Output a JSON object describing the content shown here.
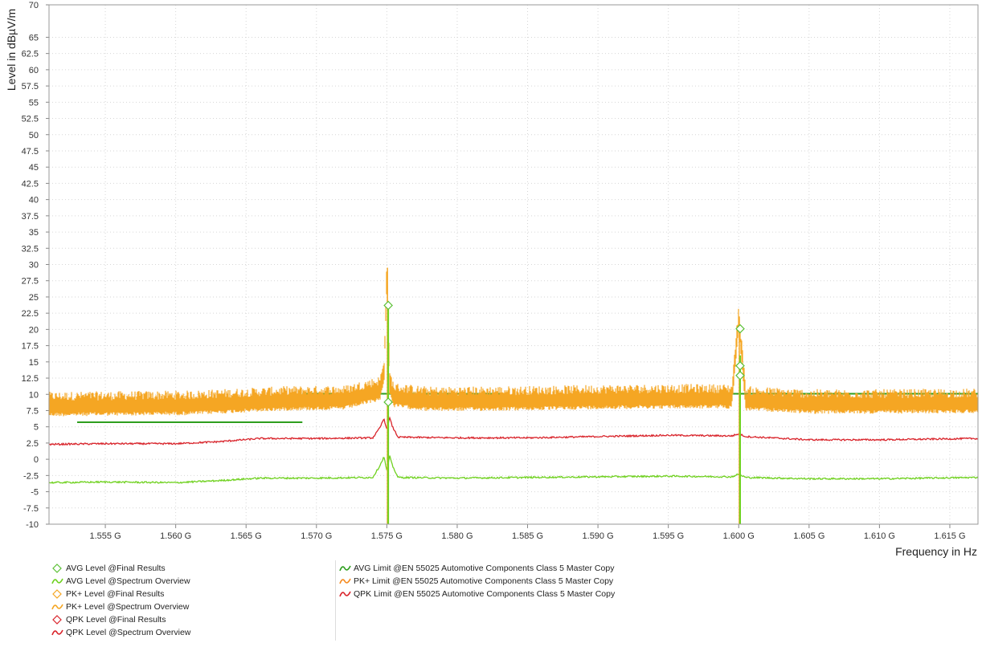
{
  "chart_data": {
    "type": "line",
    "xlabel": "Frequency in Hz",
    "ylabel": "Level in dBµV/m",
    "xlim": [
      1.551,
      1.617
    ],
    "ylim": [
      -10,
      70
    ],
    "x_unit": "GHz",
    "x_ticks": [
      1.555,
      1.56,
      1.565,
      1.57,
      1.575,
      1.58,
      1.585,
      1.59,
      1.595,
      1.6,
      1.605,
      1.61,
      1.615
    ],
    "x_tick_labels": [
      "1.555 G",
      "1.560 G",
      "1.565 G",
      "1.570 G",
      "1.575 G",
      "1.580 G",
      "1.585 G",
      "1.590 G",
      "1.595 G",
      "1.600 G",
      "1.605 G",
      "1.610 G",
      "1.615 G"
    ],
    "y_ticks": [
      -10,
      -7.5,
      -5,
      -2.5,
      0,
      2.5,
      5,
      7.5,
      10,
      12.5,
      15,
      17.5,
      20,
      22.5,
      25,
      27.5,
      30,
      32.5,
      35,
      37.5,
      40,
      42.5,
      45,
      47.5,
      50,
      52.5,
      55,
      57.5,
      60,
      62.5,
      65,
      70
    ],
    "y_tick_labels": [
      "-10",
      "-7.5",
      "-5",
      "-2.5",
      "0",
      "2.5",
      "5",
      "7.5",
      "10",
      "12.5",
      "15",
      "17.5",
      "20",
      "22.5",
      "25",
      "27.5",
      "30",
      "32.5",
      "35",
      "37.5",
      "40",
      "42.5",
      "45",
      "47.5",
      "50",
      "52.5",
      "55",
      "57.5",
      "60",
      "62.5",
      "65",
      "70"
    ],
    "grid": true,
    "series": [
      {
        "name": "PK+ Level @Spectrum Overview",
        "color": "#f5a623",
        "style": "noisy-trace",
        "x": [
          1.551,
          1.556,
          1.561,
          1.565,
          1.568,
          1.572,
          1.5745,
          1.5748,
          1.575,
          1.5752,
          1.5755,
          1.578,
          1.585,
          1.59,
          1.595,
          1.5995,
          1.6,
          1.6005,
          1.605,
          1.61,
          1.617
        ],
        "y": [
          8.6,
          8.7,
          8.8,
          9.2,
          9.5,
          9.6,
          11.0,
          13.5,
          29.0,
          12.0,
          10.0,
          9.4,
          9.5,
          9.7,
          9.8,
          9.8,
          22.0,
          9.5,
          9.0,
          9.0,
          9.1
        ]
      },
      {
        "name": "QPK Level @Spectrum Overview",
        "color": "#d9242b",
        "style": "line",
        "x": [
          1.551,
          1.555,
          1.56,
          1.563,
          1.566,
          1.57,
          1.574,
          1.5745,
          1.5748,
          1.575,
          1.5752,
          1.5754,
          1.5758,
          1.58,
          1.585,
          1.59,
          1.595,
          1.5995,
          1.6,
          1.6005,
          1.605,
          1.61,
          1.617
        ],
        "y": [
          2.3,
          2.4,
          2.4,
          2.7,
          3.2,
          3.2,
          3.3,
          4.8,
          6.3,
          4.5,
          6.4,
          5.0,
          3.4,
          3.3,
          3.3,
          3.5,
          3.7,
          3.6,
          3.9,
          3.5,
          3.0,
          3.0,
          3.2
        ]
      },
      {
        "name": "AVG Level @Spectrum Overview",
        "color": "#6fd11f",
        "style": "line",
        "x": [
          1.551,
          1.555,
          1.56,
          1.563,
          1.566,
          1.57,
          1.574,
          1.5745,
          1.5748,
          1.575,
          1.5752,
          1.5754,
          1.5758,
          1.58,
          1.585,
          1.59,
          1.595,
          1.5995,
          1.6,
          1.6005,
          1.605,
          1.61,
          1.617
        ],
        "y": [
          -3.6,
          -3.5,
          -3.6,
          -3.3,
          -2.9,
          -2.9,
          -2.8,
          -1.0,
          0.4,
          -1.8,
          0.5,
          -1.0,
          -2.8,
          -2.9,
          -2.8,
          -2.7,
          -2.6,
          -2.7,
          -2.3,
          -2.8,
          -3.0,
          -3.0,
          -2.8
        ]
      }
    ],
    "limits": [
      {
        "name": "AVG Limit @EN 55025 Automotive Components Class 5 Master Copy",
        "color": "#2e9e1e",
        "segments": [
          [
            1.553,
            1.569,
            5.7
          ],
          [
            1.569,
            1.583,
            10.1
          ],
          [
            1.598,
            1.617,
            10.1
          ]
        ]
      }
    ],
    "spikes": [
      {
        "x": 1.5751,
        "top": 29.5,
        "bottom": -10,
        "color": "#6fd11f"
      },
      {
        "x": 1.6001,
        "top": 22.0,
        "bottom": -10,
        "color": "#6fd11f"
      }
    ],
    "final_results": [
      {
        "x": 1.5751,
        "y": 23.7,
        "color": "#5cc036"
      },
      {
        "x": 1.5751,
        "y": 8.8,
        "color": "#5cc036"
      },
      {
        "x": 1.6001,
        "y": 20.1,
        "color": "#5cc036"
      },
      {
        "x": 1.6001,
        "y": 14.4,
        "color": "#5cc036"
      },
      {
        "x": 1.6001,
        "y": 12.9,
        "color": "#5cc036"
      }
    ],
    "legend_left": [
      {
        "label": "AVG Level @Final Results",
        "color": "#5cc036",
        "symbol": "diamond"
      },
      {
        "label": "AVG Level @Spectrum Overview",
        "color": "#6fd11f",
        "symbol": "wave"
      },
      {
        "label": "PK+ Level @Final Results",
        "color": "#f5a623",
        "symbol": "diamond"
      },
      {
        "label": "PK+ Level @Spectrum Overview",
        "color": "#f5a623",
        "symbol": "wave"
      },
      {
        "label": "QPK Level @Final Results",
        "color": "#d9242b",
        "symbol": "diamond"
      },
      {
        "label": "QPK Level @Spectrum Overview",
        "color": "#d9242b",
        "symbol": "wave"
      }
    ],
    "legend_right": [
      {
        "label": "AVG Limit @EN 55025 Automotive Components Class 5 Master Copy",
        "color": "#2e9e1e",
        "symbol": "wave"
      },
      {
        "label": "PK+ Limit @EN 55025 Automotive Components Class 5 Master Copy",
        "color": "#f58a1f",
        "symbol": "wave"
      },
      {
        "label": "QPK Limit @EN 55025 Automotive Components Class 5 Master Copy",
        "color": "#d9242b",
        "symbol": "wave"
      }
    ]
  }
}
